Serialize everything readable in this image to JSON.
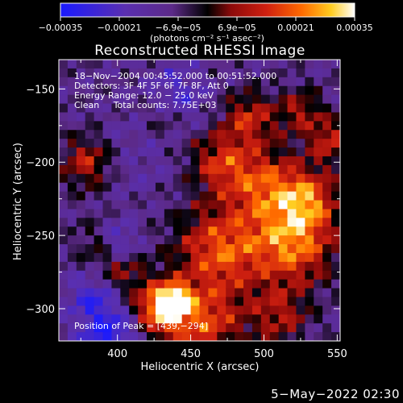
{
  "chart_data": {
    "type": "heatmap",
    "title": "Reconstructed RHESSI Image",
    "xlabel": "Heliocentric X (arcsec)",
    "ylabel": "Heliocentric Y (arcsec)",
    "xlim": [
      360,
      552
    ],
    "ylim": [
      -322,
      -130
    ],
    "x_ticks": [
      400,
      450,
      500,
      550
    ],
    "x_tick_labels": [
      "400",
      "450",
      "500",
      "550"
    ],
    "y_ticks": [
      -150,
      -200,
      -250,
      -300
    ],
    "y_tick_labels": [
      "−150",
      "−200",
      "−250",
      "−300"
    ],
    "colorbar": {
      "range": [
        -0.00035,
        0.00035
      ],
      "tick_labels": [
        "−0.00035",
        "−0.00021",
        "−6.9e−05",
        "6.9e−05",
        "0.00021",
        "0.00035"
      ],
      "unit_label": "(photons cm⁻² s⁻¹ asec⁻²)",
      "colors": [
        "#1a1aff",
        "#5a2fb0",
        "#5c2a88",
        "#000000",
        "#8c0a0a",
        "#d02010",
        "#ff6a00",
        "#ffcc20",
        "#ffffff"
      ]
    },
    "annotations": [
      "18−Nov−2004 00:45:52.000 to 00:51:52.000",
      "Detectors: 3F 4F 5F 6F 7F 8F, Att 0",
      "Energy Range: 12.0 − 25.0 keV",
      "Clean     Total counts: 7.75E+03"
    ],
    "peak_label": "Position of Peak = [439,−294]",
    "peak": [
      439,
      -294
    ]
  },
  "footer_timestamp": "5−May−2022 02:30"
}
